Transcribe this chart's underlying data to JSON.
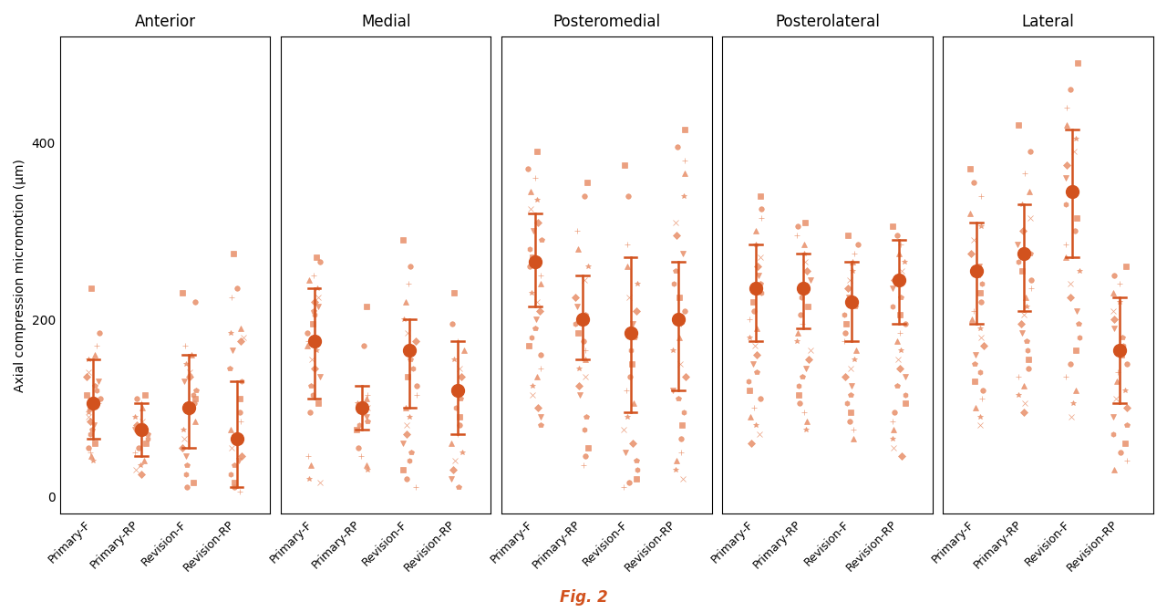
{
  "panels": [
    "Anterior",
    "Medial",
    "Posteromedial",
    "Posterolateral",
    "Lateral"
  ],
  "groups": [
    "Primary-F",
    "Primary-RP",
    "Revision-F",
    "Revision-RP"
  ],
  "color": "#D2521E",
  "color_light": "#E8906A",
  "ylabel": "Axial compression micromotion (μm)",
  "title": "Fig. 2",
  "ylim": [
    -20,
    520
  ],
  "yticks": [
    0,
    200,
    400
  ],
  "means": {
    "Anterior": [
      105,
      75,
      100,
      65
    ],
    "Medial": [
      175,
      100,
      165,
      120
    ],
    "Posteromedial": [
      265,
      200,
      185,
      200
    ],
    "Posterolateral": [
      235,
      235,
      220,
      245
    ],
    "Lateral": [
      255,
      275,
      345,
      165
    ]
  },
  "ci_low": {
    "Anterior": [
      65,
      45,
      55,
      10
    ],
    "Medial": [
      110,
      75,
      100,
      70
    ],
    "Posteromedial": [
      215,
      155,
      95,
      120
    ],
    "Posterolateral": [
      175,
      190,
      175,
      195
    ],
    "Lateral": [
      195,
      210,
      270,
      105
    ]
  },
  "ci_high": {
    "Anterior": [
      155,
      105,
      160,
      130
    ],
    "Medial": [
      235,
      125,
      200,
      175
    ],
    "Posteromedial": [
      320,
      250,
      270,
      265
    ],
    "Posterolateral": [
      285,
      275,
      265,
      290
    ],
    "Lateral": [
      310,
      330,
      415,
      225
    ]
  },
  "scatter_data": {
    "Anterior": {
      "Primary-F": [
        235,
        185,
        170,
        160,
        155,
        140,
        135,
        130,
        125,
        120,
        115,
        110,
        105,
        100,
        95,
        90,
        85,
        80,
        75,
        70,
        60,
        55,
        50,
        45,
        40
      ],
      "Primary-RP": [
        115,
        110,
        105,
        100,
        90,
        85,
        80,
        75,
        70,
        65,
        60,
        55,
        50,
        40,
        35,
        30,
        25
      ],
      "Revision-F": [
        230,
        220,
        170,
        160,
        150,
        140,
        135,
        130,
        120,
        115,
        110,
        105,
        95,
        85,
        75,
        65,
        55,
        45,
        35,
        25,
        15,
        10
      ],
      "Revision-RP": [
        275,
        235,
        225,
        190,
        185,
        180,
        175,
        165,
        145,
        130,
        110,
        95,
        85,
        75,
        65,
        55,
        45,
        40,
        35,
        25,
        15,
        10,
        5
      ]
    },
    "Medial": {
      "Primary-F": [
        270,
        265,
        250,
        245,
        235,
        225,
        220,
        215,
        210,
        205,
        195,
        185,
        175,
        170,
        165,
        155,
        145,
        135,
        125,
        115,
        105,
        95,
        45,
        35,
        20,
        15
      ],
      "Primary-RP": [
        215,
        170,
        115,
        110,
        105,
        100,
        95,
        90,
        85,
        80,
        75,
        55,
        45,
        35,
        30
      ],
      "Revision-F": [
        290,
        260,
        240,
        220,
        200,
        185,
        175,
        165,
        155,
        145,
        135,
        125,
        115,
        100,
        90,
        80,
        70,
        60,
        50,
        40,
        30,
        20,
        10
      ],
      "Revision-RP": [
        230,
        195,
        175,
        165,
        155,
        145,
        135,
        120,
        110,
        100,
        90,
        80,
        70,
        60,
        50,
        40,
        30,
        20,
        10
      ]
    },
    "Posteromedial": {
      "Primary-F": [
        390,
        370,
        360,
        345,
        335,
        325,
        310,
        300,
        290,
        280,
        270,
        260,
        250,
        240,
        230,
        220,
        210,
        200,
        190,
        180,
        170,
        160,
        145,
        135,
        125,
        115,
        100,
        90,
        80
      ],
      "Primary-RP": [
        355,
        340,
        300,
        280,
        260,
        245,
        225,
        215,
        205,
        195,
        185,
        175,
        165,
        155,
        145,
        135,
        125,
        115,
        90,
        75,
        55,
        45,
        35
      ],
      "Revision-F": [
        375,
        340,
        285,
        260,
        240,
        225,
        210,
        195,
        180,
        165,
        150,
        135,
        120,
        105,
        90,
        75,
        60,
        50,
        40,
        30,
        20,
        15,
        10
      ],
      "Revision-RP": [
        415,
        395,
        380,
        365,
        340,
        310,
        295,
        275,
        255,
        240,
        225,
        210,
        195,
        180,
        165,
        150,
        135,
        120,
        110,
        95,
        80,
        65,
        50,
        40,
        30,
        20
      ]
    },
    "Posterolateral": {
      "Primary-F": [
        340,
        325,
        315,
        300,
        285,
        270,
        260,
        250,
        240,
        230,
        220,
        210,
        200,
        190,
        180,
        170,
        160,
        150,
        140,
        130,
        120,
        110,
        100,
        90,
        80,
        70,
        60
      ],
      "Primary-RP": [
        310,
        305,
        295,
        285,
        275,
        265,
        255,
        245,
        235,
        225,
        215,
        205,
        195,
        185,
        175,
        165,
        155,
        145,
        135,
        125,
        115,
        105,
        95,
        85,
        75
      ],
      "Revision-F": [
        295,
        285,
        275,
        265,
        255,
        245,
        235,
        225,
        215,
        205,
        195,
        185,
        175,
        165,
        155,
        145,
        135,
        125,
        115,
        105,
        95,
        85,
        75,
        65
      ],
      "Revision-RP": [
        305,
        295,
        285,
        275,
        265,
        255,
        245,
        235,
        225,
        215,
        205,
        195,
        185,
        175,
        165,
        155,
        145,
        135,
        125,
        115,
        105,
        95,
        85,
        75,
        65,
        55,
        45
      ]
    },
    "Lateral": {
      "Primary-F": [
        370,
        355,
        340,
        320,
        305,
        290,
        275,
        260,
        250,
        240,
        230,
        220,
        210,
        200,
        190,
        180,
        170,
        160,
        150,
        140,
        130,
        120,
        110,
        100,
        90,
        80
      ],
      "Primary-RP": [
        420,
        390,
        365,
        345,
        330,
        315,
        300,
        285,
        275,
        265,
        255,
        245,
        235,
        225,
        215,
        205,
        195,
        185,
        175,
        165,
        155,
        145,
        135,
        125,
        115,
        105,
        95
      ],
      "Revision-F": [
        490,
        460,
        440,
        420,
        405,
        390,
        375,
        360,
        345,
        330,
        315,
        300,
        285,
        270,
        255,
        240,
        225,
        210,
        195,
        180,
        165,
        150,
        135,
        120,
        105,
        90
      ],
      "Revision-RP": [
        260,
        250,
        240,
        230,
        220,
        210,
        200,
        190,
        180,
        170,
        160,
        150,
        140,
        130,
        120,
        110,
        100,
        90,
        80,
        70,
        60,
        50,
        40,
        30
      ]
    }
  }
}
